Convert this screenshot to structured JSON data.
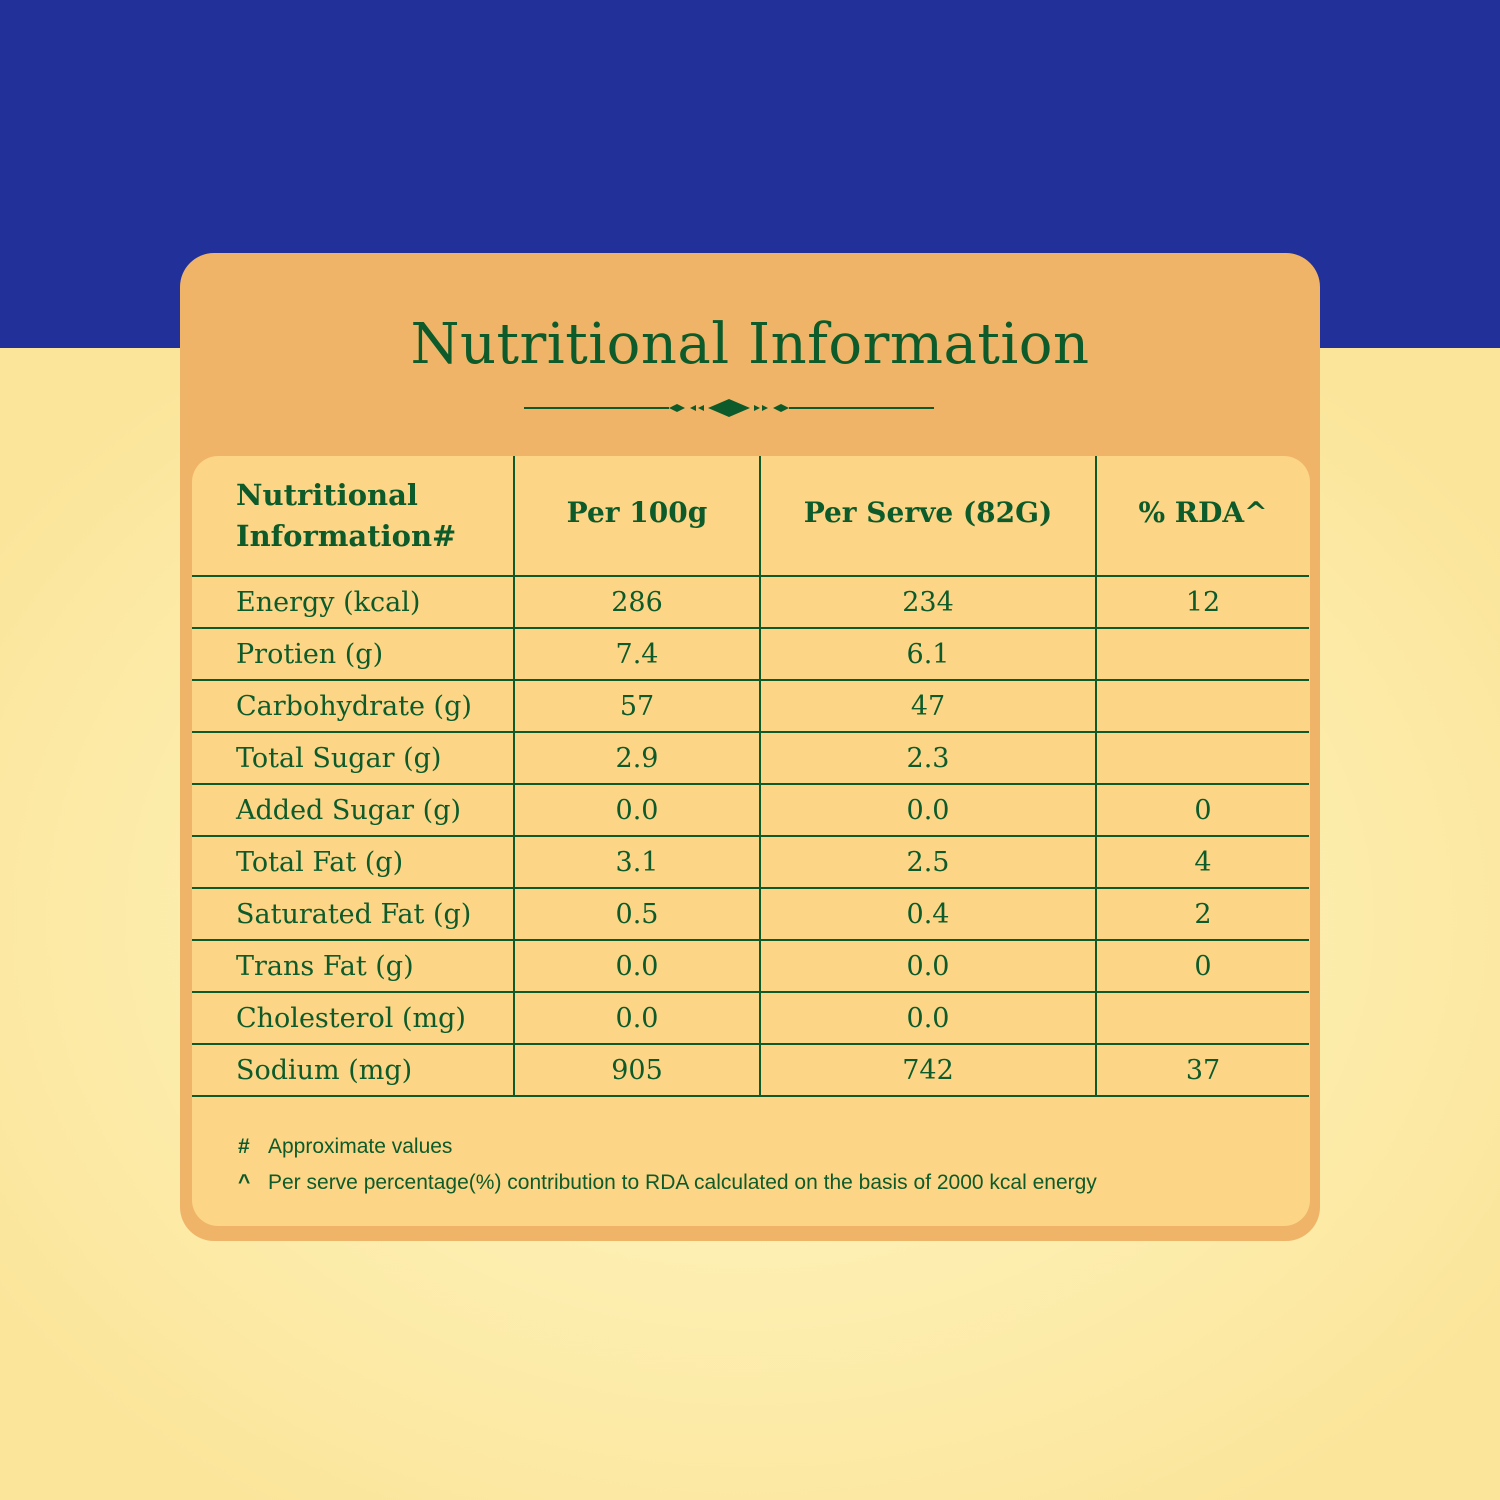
{
  "colors": {
    "top_band": "#22309a",
    "text_green": "#0d5b2a",
    "card_orange": "#efb467",
    "panel_yellow": "#fcd586"
  },
  "title": "Nutritional Information",
  "table": {
    "headers": [
      "Nutritional Information#",
      "Per 100g",
      "Per Serve (82G)",
      "% RDA^"
    ],
    "rows": [
      [
        "Energy (kcal)",
        "286",
        "234",
        "12"
      ],
      [
        "Protien (g)",
        "7.4",
        "6.1",
        ""
      ],
      [
        "Carbohydrate (g)",
        "57",
        "47",
        ""
      ],
      [
        "Total Sugar (g)",
        "2.9",
        "2.3",
        ""
      ],
      [
        "Added Sugar (g)",
        "0.0",
        "0.0",
        "0"
      ],
      [
        "Total Fat (g)",
        "3.1",
        "2.5",
        "4"
      ],
      [
        "Saturated Fat (g)",
        "0.5",
        "0.4",
        "2"
      ],
      [
        "Trans Fat (g)",
        "0.0",
        "0.0",
        "0"
      ],
      [
        "Cholesterol (mg)",
        "0.0",
        "0.0",
        ""
      ],
      [
        "Sodium (mg)",
        "905",
        "742",
        "37"
      ]
    ]
  },
  "footnotes": [
    {
      "symbol": "#",
      "text": "Approximate values"
    },
    {
      "symbol": "^",
      "text": "Per serve percentage(%) contribution to RDA calculated on the basis of 2000 kcal energy"
    }
  ]
}
